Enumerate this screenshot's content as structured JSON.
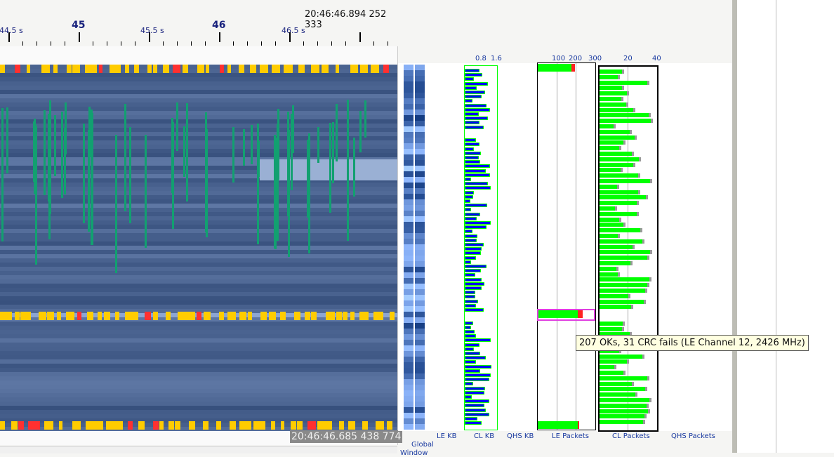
{
  "header": {
    "cursor_time": "20:46:46.894 252 333"
  },
  "ruler": {
    "minor_labels": [
      "44.5 s",
      "45.5 s",
      "46.5 s"
    ],
    "major_labels": [
      "45",
      "46"
    ]
  },
  "spectrogram": {
    "cursor_time_readout": "20:46:46.685 438 774"
  },
  "axes": {
    "cl_kb": [
      "0.8",
      "1.6"
    ],
    "le_packets": [
      "100",
      "200",
      "300"
    ],
    "cl_packets": [
      "20",
      "40"
    ]
  },
  "panel_labels": {
    "global": "Global",
    "le_kb": "LE KB",
    "cl_kb": "CL KB",
    "qhs_kb": "QHS KB",
    "le_packets": "LE Packets",
    "cl_packets": "CL Packets",
    "qhs_packets": "QHS Packets",
    "window": "Window"
  },
  "tooltip": {
    "text": "207 OKs, 31 CRC fails (LE Channel 12, 2426 MHz)"
  },
  "colors": {
    "ok": "#00ff00",
    "crc_fail": "#ff2020",
    "kb": "#0000ff",
    "packet": "#ffcc00",
    "highlight": "#e040e0"
  }
}
